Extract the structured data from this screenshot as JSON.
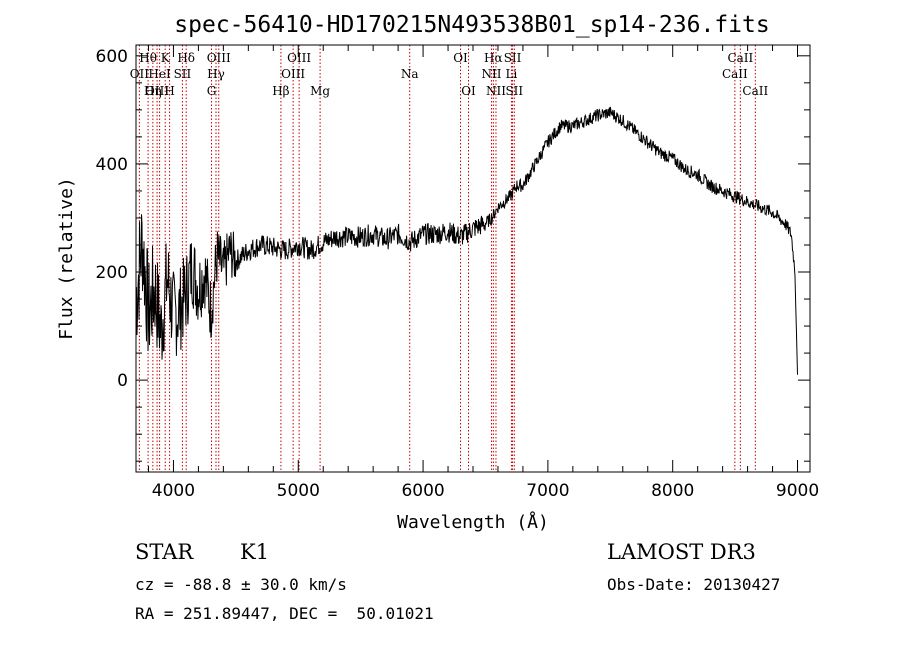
{
  "chart_data": {
    "type": "line",
    "title": "spec-56410-HD170215N493538B01_sp14-236.fits",
    "xlabel": "Wavelength (Å)",
    "ylabel": "Flux (relative)",
    "xlim": [
      3700,
      9100
    ],
    "ylim": [
      -170,
      620
    ],
    "xticks": [
      4000,
      5000,
      6000,
      7000,
      8000,
      9000
    ],
    "yticks": [
      0,
      200,
      400,
      600
    ],
    "series": [
      {
        "name": "spectrum",
        "x": [
          3700,
          3750,
          3800,
          3850,
          3900,
          3950,
          4000,
          4050,
          4100,
          4150,
          4200,
          4250,
          4300,
          4350,
          4400,
          4450,
          4500,
          4600,
          4700,
          4800,
          4900,
          5000,
          5100,
          5200,
          5300,
          5400,
          5500,
          5600,
          5700,
          5800,
          5900,
          6000,
          6100,
          6200,
          6300,
          6400,
          6500,
          6550,
          6600,
          6700,
          6750,
          6800,
          6900,
          7000,
          7100,
          7200,
          7300,
          7400,
          7500,
          7600,
          7700,
          7800,
          7900,
          8000,
          8100,
          8200,
          8300,
          8400,
          8500,
          8600,
          8700,
          8800,
          8900,
          8950,
          8980,
          9000
        ],
        "y": [
          150,
          260,
          120,
          170,
          90,
          190,
          120,
          130,
          160,
          210,
          170,
          200,
          130,
          230,
          200,
          240,
          220,
          240,
          250,
          245,
          240,
          250,
          240,
          255,
          265,
          265,
          265,
          270,
          260,
          270,
          255,
          270,
          270,
          275,
          265,
          280,
          290,
          300,
          320,
          340,
          360,
          360,
          400,
          440,
          470,
          470,
          480,
          490,
          495,
          480,
          460,
          440,
          420,
          410,
          390,
          380,
          360,
          350,
          340,
          330,
          320,
          310,
          290,
          270,
          200,
          10
        ]
      }
    ],
    "spectral_lines": [
      {
        "name": "OII",
        "wl": 3727,
        "row": 2
      },
      {
        "name": "Hθ",
        "wl": 3797,
        "row": 1
      },
      {
        "name": "OIII",
        "wl": 3869,
        "row": 3
      },
      {
        "name": "HeI",
        "wl": 3889,
        "row": 2
      },
      {
        "name": "K",
        "wl": 3934,
        "row": 1
      },
      {
        "name": "Hη",
        "wl": 3835,
        "row": 3
      },
      {
        "name": "H",
        "wl": 3969,
        "row": 3
      },
      {
        "name": "SII",
        "wl": 4072,
        "row": 2
      },
      {
        "name": "Hδ",
        "wl": 4102,
        "row": 1
      },
      {
        "name": "OIII",
        "wl": 4363,
        "row": 1
      },
      {
        "name": "Hγ",
        "wl": 4341,
        "row": 2
      },
      {
        "name": "G",
        "wl": 4305,
        "row": 3
      },
      {
        "name": "Hβ",
        "wl": 4861,
        "row": 3
      },
      {
        "name": "OIII",
        "wl": 4959,
        "row": 2
      },
      {
        "name": "OIII",
        "wl": 5007,
        "row": 1
      },
      {
        "name": "Mg",
        "wl": 5175,
        "row": 3
      },
      {
        "name": "Na",
        "wl": 5893,
        "row": 2
      },
      {
        "name": "OI",
        "wl": 6300,
        "row": 1
      },
      {
        "name": "OI",
        "wl": 6364,
        "row": 3
      },
      {
        "name": "Hα",
        "wl": 6563,
        "row": 1
      },
      {
        "name": "NII",
        "wl": 6548,
        "row": 2
      },
      {
        "name": "NII",
        "wl": 6584,
        "row": 3
      },
      {
        "name": "SII",
        "wl": 6717,
        "row": 1
      },
      {
        "name": "Li",
        "wl": 6708,
        "row": 2
      },
      {
        "name": "SII",
        "wl": 6731,
        "row": 3
      },
      {
        "name": "CaII",
        "wl": 8498,
        "row": 2
      },
      {
        "name": "CaII",
        "wl": 8542,
        "row": 1
      },
      {
        "name": "CaII",
        "wl": 8662,
        "row": 3
      }
    ]
  },
  "info": {
    "object_class": "STAR",
    "subclass": "K1",
    "survey": "LAMOST DR3",
    "redshift": "cz = -88.8 ± 30.0 km/s",
    "obs_date": "Obs-Date: 20130427",
    "coords": "RA = 251.89447, DEC =  50.01021"
  },
  "colors": {
    "line": "#000000",
    "marker": "#cc0000"
  }
}
